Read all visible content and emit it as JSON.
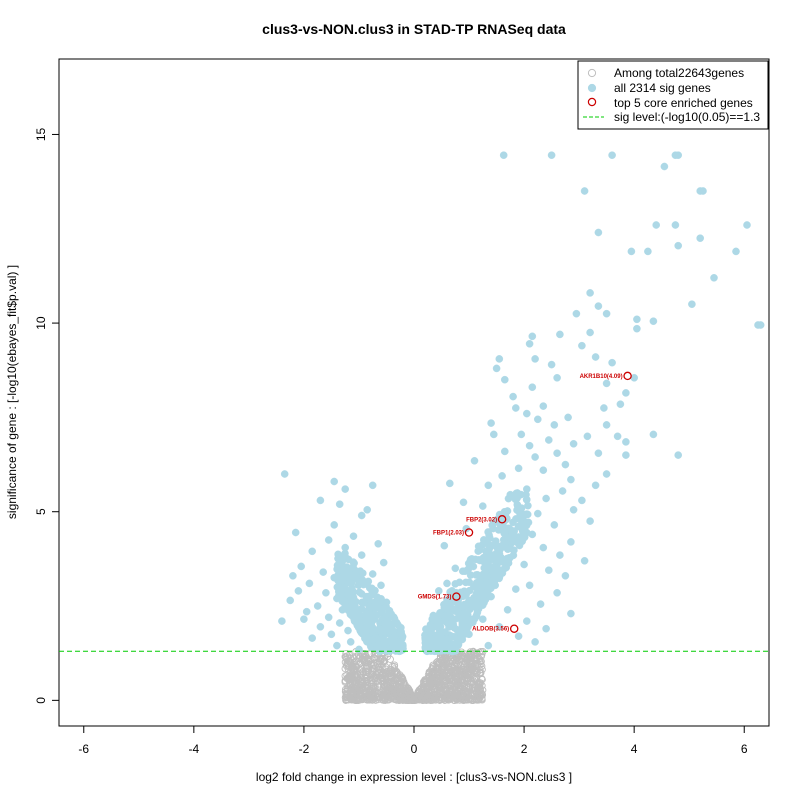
{
  "chart_data": {
    "type": "scatter",
    "title": "clus3-vs-NON.clus3 in STAD-TP RNASeq data",
    "xlabel": "log2 fold change in expression level : [clus3-vs-NON.clus3 ]",
    "ylabel": "significance of gene : [-log10(ebayes_fit$p.val) ]",
    "xlim": [
      -6.45,
      6.45
    ],
    "ylim": [
      -0.68,
      17.0
    ],
    "xticks": [
      -6,
      -4,
      -2,
      0,
      2,
      4,
      6
    ],
    "xtick_labels": [
      "-6",
      "-4",
      "-2",
      "0",
      "2",
      "4",
      "6"
    ],
    "yticks": [
      0,
      5,
      10,
      15
    ],
    "ytick_labels": [
      "0",
      "5",
      "10",
      "15"
    ],
    "sig_level": 1.3,
    "legend": {
      "placement": "top-right",
      "entries": [
        {
          "label": "Among total22643genes",
          "marker": "open-circle",
          "color": "#bebebe"
        },
        {
          "label": "all 2314 sig genes",
          "marker": "filled-circle",
          "color": "#add8e6"
        },
        {
          "label": "top 5 core enriched genes",
          "marker": "open-circle",
          "color": "#cc0000"
        },
        {
          "label": "sig level:(-log10(0.05)==1.3",
          "marker": "dashed-line",
          "color": "#00cc00"
        }
      ]
    },
    "colors": {
      "nonsig": "#bebebe",
      "sig": "#add8e6",
      "top": "#cc0000",
      "sigline": "#00cc00"
    },
    "top_genes": [
      {
        "label": "AKR1B10(4.09)",
        "x": 3.88,
        "y": 8.6
      },
      {
        "label": "FBP2(3.02)",
        "x": 1.6,
        "y": 4.8
      },
      {
        "label": "FBP1(2.03)",
        "x": 1.0,
        "y": 4.45
      },
      {
        "label": "GMDS(1.73)",
        "x": 0.77,
        "y": 2.75
      },
      {
        "label": "ALDOB(3.56)",
        "x": 1.82,
        "y": 1.9
      }
    ],
    "sig_points": [
      [
        1.63,
        14.45
      ],
      [
        2.5,
        14.45
      ],
      [
        3.6,
        14.45
      ],
      [
        4.75,
        14.45
      ],
      [
        4.8,
        14.45
      ],
      [
        4.55,
        14.15
      ],
      [
        3.1,
        13.5
      ],
      [
        5.2,
        13.5
      ],
      [
        5.25,
        13.5
      ],
      [
        4.75,
        12.6
      ],
      [
        4.4,
        12.6
      ],
      [
        6.05,
        12.6
      ],
      [
        3.35,
        12.4
      ],
      [
        5.2,
        12.25
      ],
      [
        4.8,
        12.05
      ],
      [
        3.95,
        11.9
      ],
      [
        4.25,
        11.9
      ],
      [
        5.85,
        11.9
      ],
      [
        5.45,
        11.2
      ],
      [
        3.2,
        10.8
      ],
      [
        5.05,
        10.5
      ],
      [
        3.35,
        10.45
      ],
      [
        2.95,
        10.25
      ],
      [
        3.5,
        10.25
      ],
      [
        4.05,
        10.1
      ],
      [
        4.35,
        10.05
      ],
      [
        6.25,
        9.95
      ],
      [
        6.3,
        9.95
      ],
      [
        4.05,
        9.85
      ],
      [
        3.2,
        9.75
      ],
      [
        2.65,
        9.7
      ],
      [
        2.15,
        9.65
      ],
      [
        2.1,
        9.45
      ],
      [
        3.05,
        9.4
      ],
      [
        3.3,
        9.1
      ],
      [
        1.55,
        9.05
      ],
      [
        2.2,
        9.05
      ],
      [
        3.6,
        8.95
      ],
      [
        2.5,
        8.9
      ],
      [
        1.5,
        8.8
      ],
      [
        4.0,
        8.55
      ],
      [
        2.6,
        8.55
      ],
      [
        1.65,
        8.5
      ],
      [
        3.5,
        8.4
      ],
      [
        2.15,
        8.3
      ],
      [
        3.85,
        8.15
      ],
      [
        1.8,
        8.05
      ],
      [
        3.75,
        7.85
      ],
      [
        2.35,
        7.8
      ],
      [
        3.45,
        7.75
      ],
      [
        1.85,
        7.75
      ],
      [
        2.05,
        7.6
      ],
      [
        2.8,
        7.5
      ],
      [
        2.25,
        7.45
      ],
      [
        1.4,
        7.35
      ],
      [
        3.5,
        7.3
      ],
      [
        2.55,
        7.3
      ],
      [
        1.45,
        7.05
      ],
      [
        4.35,
        7.05
      ],
      [
        1.95,
        7.05
      ],
      [
        3.15,
        7.0
      ],
      [
        3.7,
        7.0
      ],
      [
        2.45,
        6.9
      ],
      [
        3.85,
        6.85
      ],
      [
        2.9,
        6.8
      ],
      [
        2.1,
        6.75
      ],
      [
        1.65,
        6.6
      ],
      [
        2.6,
        6.55
      ],
      [
        3.35,
        6.55
      ],
      [
        4.8,
        6.5
      ],
      [
        3.85,
        6.5
      ],
      [
        2.2,
        6.45
      ],
      [
        1.1,
        6.35
      ],
      [
        2.75,
        6.25
      ],
      [
        1.9,
        6.15
      ],
      [
        2.35,
        6.1
      ],
      [
        3.5,
        6.0
      ],
      [
        1.6,
        5.95
      ],
      [
        2.85,
        5.85
      ],
      [
        0.65,
        5.75
      ],
      [
        1.35,
        5.7
      ],
      [
        3.3,
        5.7
      ],
      [
        2.05,
        5.6
      ],
      [
        2.7,
        5.55
      ],
      [
        1.75,
        5.45
      ],
      [
        2.4,
        5.35
      ],
      [
        3.05,
        5.3
      ],
      [
        0.9,
        5.25
      ],
      [
        1.25,
        5.15
      ],
      [
        2.9,
        5.05
      ],
      [
        2.25,
        4.95
      ],
      [
        1.95,
        4.85
      ],
      [
        3.2,
        4.75
      ],
      [
        1.45,
        4.7
      ],
      [
        2.55,
        4.65
      ],
      [
        0.95,
        4.55
      ],
      [
        2.15,
        4.4
      ],
      [
        1.75,
        4.3
      ],
      [
        2.85,
        4.2
      ],
      [
        0.55,
        4.1
      ],
      [
        2.35,
        4.05
      ],
      [
        1.35,
        3.95
      ],
      [
        2.65,
        3.85
      ],
      [
        1.05,
        3.75
      ],
      [
        3.1,
        3.7
      ],
      [
        2.0,
        3.6
      ],
      [
        0.75,
        3.5
      ],
      [
        2.45,
        3.45
      ],
      [
        1.55,
        3.35
      ],
      [
        2.75,
        3.3
      ],
      [
        1.2,
        3.2
      ],
      [
        0.6,
        3.1
      ],
      [
        2.1,
        3.05
      ],
      [
        1.85,
        2.95
      ],
      [
        0.45,
        2.9
      ],
      [
        2.6,
        2.85
      ],
      [
        1.4,
        2.75
      ],
      [
        1.0,
        2.65
      ],
      [
        2.3,
        2.55
      ],
      [
        0.55,
        2.45
      ],
      [
        1.7,
        2.4
      ],
      [
        2.85,
        2.3
      ],
      [
        0.35,
        2.25
      ],
      [
        1.25,
        2.15
      ],
      [
        2.05,
        2.1
      ],
      [
        0.7,
        2.0
      ],
      [
        1.55,
        1.95
      ],
      [
        2.4,
        1.9
      ],
      [
        0.3,
        1.8
      ],
      [
        1.0,
        1.75
      ],
      [
        1.9,
        1.7
      ],
      [
        0.5,
        1.6
      ],
      [
        2.2,
        1.55
      ],
      [
        0.8,
        1.5
      ],
      [
        1.35,
        1.45
      ],
      [
        0.25,
        1.4
      ],
      [
        -2.35,
        6.0
      ],
      [
        -1.45,
        5.8
      ],
      [
        -1.25,
        5.6
      ],
      [
        -0.75,
        5.7
      ],
      [
        -1.7,
        5.3
      ],
      [
        -1.35,
        5.2
      ],
      [
        -0.85,
        5.05
      ],
      [
        -0.95,
        4.9
      ],
      [
        -1.45,
        4.65
      ],
      [
        -2.15,
        4.45
      ],
      [
        -1.1,
        4.35
      ],
      [
        -1.55,
        4.25
      ],
      [
        -0.65,
        4.15
      ],
      [
        -1.25,
        4.05
      ],
      [
        -1.85,
        3.95
      ],
      [
        -0.95,
        3.85
      ],
      [
        -1.35,
        3.75
      ],
      [
        -0.55,
        3.65
      ],
      [
        -2.05,
        3.55
      ],
      [
        -1.15,
        3.5
      ],
      [
        -1.65,
        3.4
      ],
      [
        -0.75,
        3.35
      ],
      [
        -2.2,
        3.3
      ],
      [
        -1.45,
        3.25
      ],
      [
        -0.95,
        3.15
      ],
      [
        -1.9,
        3.1
      ],
      [
        -0.6,
        3.05
      ],
      [
        -1.25,
        2.95
      ],
      [
        -2.1,
        2.9
      ],
      [
        -1.6,
        2.85
      ],
      [
        -0.85,
        2.75
      ],
      [
        -1.4,
        2.7
      ],
      [
        -2.25,
        2.65
      ],
      [
        -0.5,
        2.6
      ],
      [
        -1.1,
        2.55
      ],
      [
        -1.75,
        2.5
      ],
      [
        -0.7,
        2.45
      ],
      [
        -1.3,
        2.4
      ],
      [
        -1.95,
        2.35
      ],
      [
        -0.45,
        2.3
      ],
      [
        -1.05,
        2.25
      ],
      [
        -1.55,
        2.2
      ],
      [
        -2.0,
        2.15
      ],
      [
        -0.8,
        2.1
      ],
      [
        -1.35,
        2.05
      ],
      [
        -0.4,
        2.0
      ],
      [
        -2.4,
        2.1
      ],
      [
        -1.7,
        1.95
      ],
      [
        -0.95,
        1.9
      ],
      [
        -1.2,
        1.85
      ],
      [
        -0.6,
        1.8
      ],
      [
        -1.5,
        1.75
      ],
      [
        -0.35,
        1.7
      ],
      [
        -1.85,
        1.65
      ],
      [
        -0.75,
        1.6
      ],
      [
        -1.15,
        1.55
      ],
      [
        -0.5,
        1.5
      ],
      [
        -1.4,
        1.45
      ],
      [
        -0.3,
        1.4
      ],
      [
        -1.0,
        1.35
      ]
    ]
  }
}
